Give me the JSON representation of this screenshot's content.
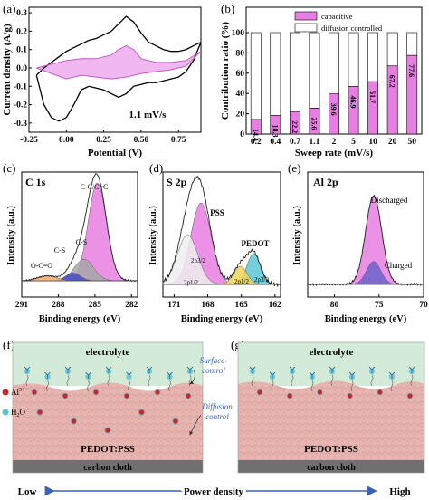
{
  "chart_data": [
    {
      "panel": "(a)",
      "type": "line",
      "xlabel": "Potential (V)",
      "ylabel": "Current density (A/g)",
      "xlim": [
        -0.25,
        0.9
      ],
      "ylim": [
        -0.35,
        0.33
      ],
      "xticks": [
        "-0.25",
        "0.00",
        "0.25",
        "0.50",
        "0.75"
      ],
      "yticks": [
        "-0.3",
        "-0.2",
        "-0.1",
        "0.0",
        "0.1",
        "0.2",
        "0.3"
      ],
      "annotations": [
        "1.1 mV/s"
      ],
      "series": [
        {
          "x": [
            -0.2,
            -0.15,
            -0.1,
            -0.05,
            0.0,
            0.05,
            0.1,
            0.15,
            0.2,
            0.25,
            0.3,
            0.35,
            0.4,
            0.45,
            0.5,
            0.55,
            0.6,
            0.65,
            0.7,
            0.75,
            0.8,
            0.85,
            0.9
          ],
          "y": [
            -0.04,
            0.0,
            0.03,
            0.06,
            0.09,
            0.11,
            0.13,
            0.15,
            0.16,
            0.18,
            0.2,
            0.24,
            0.28,
            0.25,
            0.19,
            0.14,
            0.12,
            0.1,
            0.09,
            0.09,
            0.1,
            0.12,
            0.14
          ],
          "color": "#000000"
        },
        {
          "x": [
            0.9,
            0.85,
            0.8,
            0.75,
            0.7,
            0.65,
            0.6,
            0.55,
            0.5,
            0.45,
            0.4,
            0.35,
            0.3,
            0.25,
            0.2,
            0.15,
            0.1,
            0.05,
            0.0,
            -0.05,
            -0.1,
            -0.15,
            -0.2
          ],
          "y": [
            0.14,
            0.04,
            -0.02,
            -0.05,
            -0.06,
            -0.07,
            -0.08,
            -0.08,
            -0.09,
            -0.1,
            -0.14,
            -0.16,
            -0.14,
            -0.12,
            -0.11,
            -0.1,
            -0.12,
            -0.2,
            -0.27,
            -0.29,
            -0.27,
            -0.2,
            -0.04
          ],
          "color": "#000000"
        },
        {
          "x": [
            -0.2,
            -0.1,
            0.0,
            0.1,
            0.2,
            0.3,
            0.35,
            0.4,
            0.45,
            0.5,
            0.6,
            0.7,
            0.8,
            0.9
          ],
          "y": [
            0.0,
            0.02,
            0.04,
            0.05,
            0.05,
            0.07,
            0.1,
            0.12,
            0.1,
            0.05,
            0.03,
            0.03,
            0.04,
            0.09
          ],
          "color": "#c15cc1",
          "fill_to": "reversed-lower"
        },
        {
          "x": [
            0.9,
            0.8,
            0.7,
            0.6,
            0.5,
            0.4,
            0.3,
            0.2,
            0.1,
            0.0,
            -0.1,
            -0.2
          ],
          "y": [
            0.09,
            0.01,
            -0.01,
            -0.02,
            -0.03,
            -0.05,
            -0.06,
            -0.05,
            -0.04,
            -0.06,
            -0.03,
            0.0
          ],
          "color": "#c15cc1"
        }
      ]
    },
    {
      "panel": "(b)",
      "type": "bar",
      "stacked": true,
      "xlabel": "Sweep rate (mV/s)",
      "ylabel": "Contribution ratio (%)",
      "ylim": [
        0,
        125
      ],
      "yticks": [
        "0",
        "20",
        "40",
        "60",
        "80",
        "100"
      ],
      "categories": [
        "0.2",
        "0.4",
        "0.7",
        "1.1",
        "2",
        "5",
        "10",
        "20",
        "50"
      ],
      "series": [
        {
          "name": "capacitive",
          "values": [
            14.4,
            18.3,
            22.2,
            25.6,
            39.6,
            46.9,
            51.7,
            67.2,
            77.6
          ],
          "color": "#e77fe3"
        },
        {
          "name": "diffusion controlled",
          "values": [
            85.6,
            81.7,
            77.8,
            74.4,
            60.4,
            53.1,
            48.3,
            32.8,
            22.4
          ],
          "color": "#ffffff"
        }
      ],
      "legend": "top"
    },
    {
      "panel": "(c)",
      "type": "line",
      "title": "C 1s",
      "xlabel": "Binding energy (eV)",
      "ylabel": "Intensity (a.u.)",
      "xlim": [
        291,
        281.5
      ],
      "xticks": [
        "291",
        "288",
        "285",
        "282"
      ],
      "annotations": [
        "C-C/C=C",
        "C-S",
        "C-S",
        "O-C=O"
      ],
      "peaks": [
        {
          "label": "C-C/C=C",
          "center": 284.8,
          "height": 1.0,
          "width": 0.75,
          "color": "#e77fe3"
        },
        {
          "label": "C-S",
          "center": 285.9,
          "height": 0.22,
          "width": 0.8,
          "color": "#a7a7a7"
        },
        {
          "label": "C-S",
          "center": 286.8,
          "height": 0.08,
          "width": 0.6,
          "color": "#4a4ac8"
        },
        {
          "label": "O-C=O",
          "center": 288.9,
          "height": 0.05,
          "width": 0.8,
          "color": "#f3a86c"
        }
      ]
    },
    {
      "panel": "(d)",
      "type": "line",
      "title": "S 2p",
      "xlabel": "Binding energy (eV)",
      "ylabel": "Intensity (a.u.)",
      "xlim": [
        172,
        161.5
      ],
      "xticks": [
        "171",
        "168",
        "165",
        "162"
      ],
      "annotations": [
        "PSS",
        "PEDOT",
        "2p3/2",
        "2p1/2",
        "2p1/2",
        "2p3/2"
      ],
      "peaks": [
        {
          "label": "2p3/2",
          "center": 168.6,
          "height": 0.9,
          "width": 0.9,
          "color": "#e77fe3"
        },
        {
          "label": "2p1/2",
          "center": 169.8,
          "height": 0.55,
          "width": 0.9,
          "color": "#eeeeee"
        },
        {
          "label": "2p3/2",
          "center": 163.9,
          "height": 0.34,
          "width": 0.6,
          "color": "#5cc7d3"
        },
        {
          "label": "2p1/2",
          "center": 165.1,
          "height": 0.2,
          "width": 0.6,
          "color": "#f0d35a"
        }
      ]
    },
    {
      "panel": "(e)",
      "type": "line",
      "title": "Al 2p",
      "xlabel": "Binding energy (eV)",
      "ylabel": "Intensity (a.u.)",
      "xlim": [
        83,
        70
      ],
      "xticks": [
        "80",
        "75",
        "70"
      ],
      "annotations": [
        "Discharged",
        "Charged"
      ],
      "peaks": [
        {
          "label": "Discharged",
          "center": 75.6,
          "height": 0.85,
          "width": 0.9,
          "color": "#e77fe3"
        },
        {
          "label": "Charged",
          "center": 75.6,
          "height": 0.22,
          "width": 0.8,
          "color": "#6f63c9"
        }
      ]
    }
  ],
  "schematics": {
    "f": {
      "label": "(f)",
      "electrolyte": "electrolyte",
      "pedot": "PEDOT:PSS",
      "carbon": "carbon cloth",
      "legend_al": "Al",
      "legend_al_sup": "3+",
      "legend_h2o_pre": "H",
      "legend_h2o_sub": "2",
      "legend_h2o_post": "O"
    },
    "g": {
      "label": "(g)",
      "electrolyte": "electrolyte",
      "pedot": "PEDOT:PSS",
      "carbon": "carbon cloth"
    },
    "surface_control": "Surface-\ncontrol",
    "diffusion_control": "Diffusion\ncontrol",
    "power_low": "Low",
    "power_mid": "Power density",
    "power_high": "High"
  },
  "colors": {
    "electrolyte_bg": "#d4ead8",
    "pedot_bg": "#e7b5b0",
    "carbon_bg": "#707070",
    "arrow_blue": "#3b63b5",
    "al_ion": "#c42828",
    "h2o": "#5cc0d6"
  }
}
